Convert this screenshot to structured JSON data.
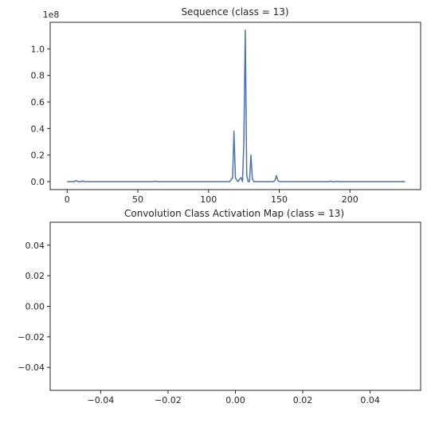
{
  "chart_data": [
    {
      "type": "line",
      "title": "Sequence (class = 13)",
      "xlabel": "",
      "ylabel": "",
      "y_offset_label": "1e8",
      "xlim": [
        -12,
        250
      ],
      "ylim": [
        -0.06,
        1.2
      ],
      "x_ticks": [
        0,
        50,
        100,
        150,
        200
      ],
      "y_ticks": [
        0.0,
        0.2,
        0.4,
        0.6,
        0.8,
        1.0
      ],
      "x_tick_labels": [
        "0",
        "50",
        "100",
        "150",
        "200"
      ],
      "y_tick_labels": [
        "0.0",
        "0.2",
        "0.4",
        "0.6",
        "0.8",
        "1.0"
      ],
      "grid": false,
      "series": [
        {
          "color": "#4c72b0",
          "x": [
            0,
            5,
            6,
            8,
            10,
            11,
            12,
            60,
            62,
            64,
            115,
            117,
            118,
            119,
            120,
            121,
            122,
            123,
            124,
            125,
            126,
            127,
            128,
            129,
            130,
            131,
            132,
            133,
            146,
            147,
            148,
            149,
            150,
            185,
            186,
            187,
            190,
            191,
            192,
            239
          ],
          "y": [
            0.0,
            0.0,
            0.008,
            0.0,
            0.0,
            0.006,
            0.0,
            0.0,
            0.003,
            0.0,
            0.0,
            0.03,
            0.38,
            0.03,
            0.01,
            0.0,
            0.02,
            0.03,
            0.0,
            0.3,
            1.14,
            0.05,
            0.0,
            0.0,
            0.2,
            0.02,
            0.0,
            0.0,
            0.0,
            0.01,
            0.045,
            0.01,
            0.0,
            0.0,
            0.004,
            0.0,
            0.0,
            0.003,
            0.0,
            0.0
          ]
        }
      ]
    },
    {
      "type": "line",
      "title": "Convolution Class Activation Map (class = 13)",
      "xlabel": "",
      "ylabel": "",
      "xlim": [
        -0.055,
        0.055
      ],
      "ylim": [
        -0.055,
        0.055
      ],
      "x_ticks": [
        -0.04,
        -0.02,
        0.0,
        0.02,
        0.04
      ],
      "y_ticks": [
        -0.04,
        -0.02,
        0.0,
        0.02,
        0.04
      ],
      "x_tick_labels": [
        "−0.04",
        "−0.02",
        "0.00",
        "0.02",
        "0.04"
      ],
      "y_tick_labels": [
        "−0.04",
        "−0.02",
        "0.00",
        "0.02",
        "0.04"
      ],
      "grid": false,
      "series": []
    }
  ]
}
